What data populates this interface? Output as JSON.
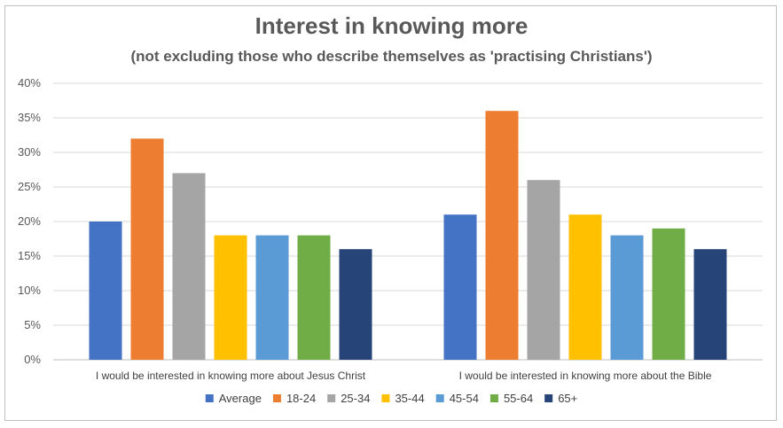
{
  "chart_data": {
    "type": "bar",
    "title": "Interest in knowing more",
    "subtitle": "(not excluding those who describe themselves as 'practising Christians')",
    "categories": [
      "I would be interested in knowing more about Jesus Christ",
      "I would be interested in knowing more about the Bible"
    ],
    "series": [
      {
        "name": "Average",
        "color": "#4472c4",
        "values": [
          20,
          21
        ]
      },
      {
        "name": "18-24",
        "color": "#ed7d31",
        "values": [
          32,
          36
        ]
      },
      {
        "name": "25-34",
        "color": "#a5a5a5",
        "values": [
          27,
          26
        ]
      },
      {
        "name": "35-44",
        "color": "#ffc000",
        "values": [
          18,
          21
        ]
      },
      {
        "name": "45-54",
        "color": "#5b9bd5",
        "values": [
          18,
          18
        ]
      },
      {
        "name": "55-64",
        "color": "#70ad47",
        "values": [
          18,
          19
        ]
      },
      {
        "name": "65+",
        "color": "#264478",
        "values": [
          16,
          16
        ]
      }
    ],
    "ylim": [
      0,
      40
    ],
    "yticks": [
      "0%",
      "5%",
      "10%",
      "15%",
      "20%",
      "25%",
      "30%",
      "35%",
      "40%"
    ],
    "grid": true,
    "legend": "bottom"
  }
}
